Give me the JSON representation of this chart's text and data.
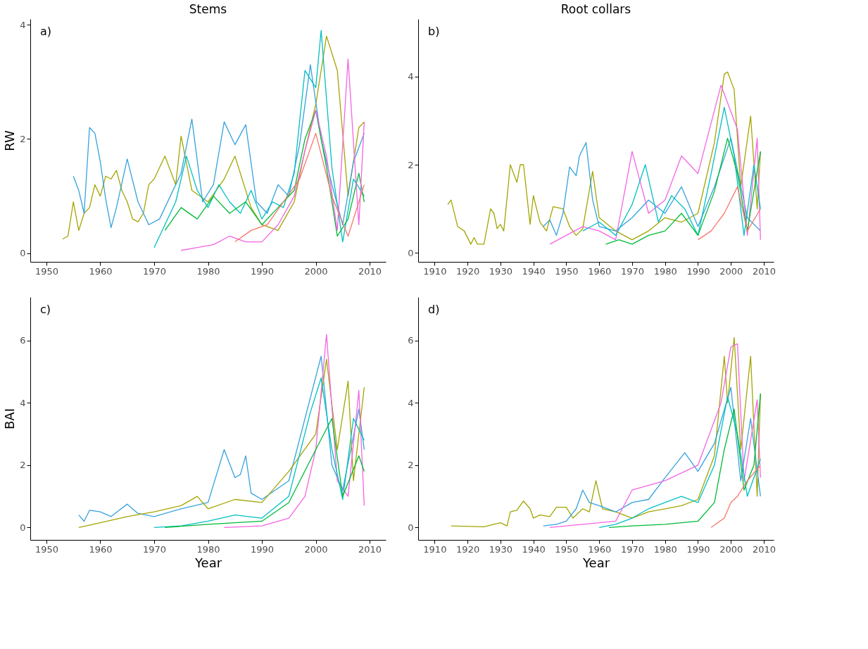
{
  "chart_data": [
    {
      "type": "line",
      "title": "Stems",
      "ylabel": "RW",
      "annotations": [
        "a)"
      ],
      "xlim": [
        1947,
        2013
      ],
      "xticks": [
        1950,
        1960,
        1970,
        1980,
        1990,
        2000,
        2010
      ],
      "ylim": [
        -0.15,
        4.1
      ],
      "yticks": [
        0,
        2,
        4
      ],
      "grid": false,
      "legend": false,
      "series": [
        {
          "color": "#a3a500",
          "x": [
            1953,
            1954,
            1955,
            1956,
            1957,
            1958,
            1959,
            1960,
            1961,
            1962,
            1963,
            1964,
            1965,
            1966,
            1967,
            1968,
            1969,
            1970,
            1972,
            1974,
            1975,
            1977,
            1980,
            1983,
            1985,
            1988,
            1990,
            1993,
            1996,
            1998,
            2000,
            2002,
            2004,
            2006,
            2008,
            2009
          ],
          "values": [
            0.25,
            0.3,
            0.9,
            0.4,
            0.7,
            0.8,
            1.2,
            1.0,
            1.35,
            1.3,
            1.45,
            1.1,
            0.9,
            0.6,
            0.55,
            0.7,
            1.2,
            1.3,
            1.7,
            1.2,
            2.05,
            1.1,
            0.9,
            1.3,
            1.7,
            0.8,
            0.5,
            0.4,
            0.9,
            1.8,
            2.6,
            3.8,
            3.2,
            1.0,
            2.2,
            2.3
          ]
        },
        {
          "color": "#35a2dd",
          "x": [
            1955,
            1956,
            1957,
            1958,
            1959,
            1960,
            1961,
            1962,
            1963,
            1965,
            1967,
            1969,
            1971,
            1973,
            1975,
            1977,
            1979,
            1981,
            1983,
            1985,
            1987,
            1989,
            1991,
            1993,
            1995,
            1997,
            1999,
            2001,
            2003,
            2005,
            2007,
            2009
          ],
          "values": [
            1.35,
            1.1,
            0.7,
            2.2,
            2.1,
            1.6,
            0.95,
            0.45,
            0.8,
            1.65,
            0.9,
            0.5,
            0.6,
            1.0,
            1.4,
            2.35,
            0.9,
            1.2,
            2.3,
            1.9,
            2.25,
            0.9,
            0.7,
            1.2,
            1.0,
            1.9,
            3.3,
            2.0,
            1.2,
            0.5,
            1.6,
            2.1
          ]
        },
        {
          "color": "#00bfc4",
          "x": [
            1970,
            1972,
            1974,
            1976,
            1978,
            1980,
            1982,
            1984,
            1986,
            1988,
            1990,
            1992,
            1994,
            1996,
            1998,
            2000,
            2001,
            2003,
            2005,
            2007,
            2009
          ],
          "values": [
            0.1,
            0.5,
            0.9,
            1.7,
            1.1,
            0.8,
            1.2,
            0.9,
            0.7,
            1.1,
            0.6,
            0.9,
            0.8,
            1.4,
            3.2,
            2.9,
            3.9,
            1.5,
            0.2,
            1.3,
            1.0
          ]
        },
        {
          "color": "#00ba38",
          "x": [
            1972,
            1975,
            1978,
            1981,
            1984,
            1987,
            1990,
            1993,
            1996,
            1998,
            2000,
            2002,
            2004,
            2006,
            2008,
            2009
          ],
          "values": [
            0.4,
            0.8,
            0.6,
            1.0,
            0.7,
            0.9,
            0.5,
            0.8,
            1.1,
            2.0,
            2.5,
            1.5,
            0.3,
            0.6,
            1.4,
            0.9
          ]
        },
        {
          "color": "#f564e3",
          "x": [
            1975,
            1978,
            1981,
            1984,
            1987,
            1990,
            1993,
            1996,
            1998,
            2000,
            2002,
            2004,
            2006,
            2008,
            2009
          ],
          "values": [
            0.05,
            0.1,
            0.15,
            0.3,
            0.2,
            0.2,
            0.5,
            1.0,
            1.8,
            2.5,
            1.7,
            0.4,
            3.4,
            0.5,
            2.3
          ]
        },
        {
          "color": "#f8766d",
          "x": [
            1985,
            1988,
            1991,
            1994,
            1997,
            2000,
            2003,
            2006,
            2009
          ],
          "values": [
            0.2,
            0.4,
            0.5,
            0.9,
            1.3,
            2.1,
            1.0,
            0.3,
            1.2
          ]
        }
      ]
    },
    {
      "type": "line",
      "title": "Root collars",
      "annotations": [
        "b)"
      ],
      "xlim": [
        1905,
        2013
      ],
      "xticks": [
        1910,
        1920,
        1930,
        1940,
        1950,
        1960,
        1970,
        1980,
        1990,
        2000,
        2010
      ],
      "ylim": [
        -0.2,
        5.3
      ],
      "yticks": [
        0,
        2,
        4
      ],
      "grid": false,
      "legend": false,
      "series": [
        {
          "color": "#a3a500",
          "x": [
            1914,
            1915,
            1917,
            1919,
            1921,
            1922,
            1923,
            1925,
            1927,
            1928,
            1929,
            1930,
            1931,
            1933,
            1935,
            1936,
            1937,
            1939,
            1940,
            1942,
            1944,
            1946,
            1949,
            1951,
            1953,
            1955,
            1958,
            1960,
            1965,
            1970,
            1975,
            1980,
            1985,
            1990,
            1995,
            1998,
            1999,
            2001,
            2003,
            2006,
            2008,
            2009
          ],
          "values": [
            1.1,
            1.2,
            0.6,
            0.5,
            0.2,
            0.35,
            0.2,
            0.2,
            1.0,
            0.9,
            0.55,
            0.65,
            0.5,
            2.0,
            1.6,
            2.0,
            2.0,
            0.65,
            1.3,
            0.7,
            0.5,
            1.05,
            1.0,
            0.6,
            0.4,
            0.55,
            1.85,
            0.8,
            0.5,
            0.3,
            0.5,
            0.8,
            0.7,
            0.9,
            2.5,
            4.05,
            4.1,
            3.7,
            1.5,
            3.1,
            1.0,
            2.3
          ]
        },
        {
          "color": "#35a2dd",
          "x": [
            1943,
            1945,
            1947,
            1949,
            1951,
            1953,
            1954,
            1956,
            1958,
            1960,
            1965,
            1970,
            1975,
            1980,
            1985,
            1990,
            1995,
            2000,
            2005,
            2009
          ],
          "values": [
            0.6,
            0.75,
            0.4,
            0.9,
            1.95,
            1.75,
            2.2,
            2.5,
            1.2,
            0.6,
            0.5,
            0.8,
            1.2,
            0.9,
            1.5,
            0.6,
            1.5,
            2.6,
            0.8,
            0.5
          ]
        },
        {
          "color": "#f564e3",
          "x": [
            1945,
            1950,
            1955,
            1960,
            1965,
            1970,
            1975,
            1980,
            1985,
            1990,
            1997,
            2002,
            2005,
            2008,
            2009
          ],
          "values": [
            0.2,
            0.4,
            0.6,
            0.5,
            0.3,
            2.3,
            0.9,
            1.2,
            2.2,
            1.8,
            3.8,
            2.8,
            0.4,
            2.6,
            0.3
          ]
        },
        {
          "color": "#00bfc4",
          "x": [
            1955,
            1960,
            1965,
            1970,
            1974,
            1978,
            1982,
            1986,
            1990,
            1994,
            1998,
            2001,
            2004,
            2007,
            2009
          ],
          "values": [
            0.5,
            0.7,
            0.4,
            1.1,
            2.0,
            0.7,
            1.3,
            1.0,
            0.4,
            1.8,
            3.3,
            2.2,
            0.4,
            2.0,
            1.0
          ]
        },
        {
          "color": "#00ba38",
          "x": [
            1962,
            1966,
            1970,
            1975,
            1980,
            1985,
            1990,
            1995,
            1999,
            2002,
            2005,
            2009
          ],
          "values": [
            0.2,
            0.3,
            0.2,
            0.4,
            0.5,
            0.9,
            0.4,
            1.4,
            2.6,
            1.8,
            0.5,
            2.3
          ]
        },
        {
          "color": "#f8766d",
          "x": [
            1990,
            1994,
            1998,
            2002,
            2005,
            2009
          ],
          "values": [
            0.3,
            0.5,
            0.9,
            1.5,
            0.5,
            1.0
          ]
        }
      ]
    },
    {
      "type": "line",
      "xlabel": "Year",
      "ylabel": "BAI",
      "annotations": [
        "c)"
      ],
      "xlim": [
        1947,
        2013
      ],
      "xticks": [
        1950,
        1960,
        1970,
        1980,
        1990,
        2000,
        2010
      ],
      "ylim": [
        -0.4,
        7.4
      ],
      "yticks": [
        0,
        2,
        4,
        6
      ],
      "grid": false,
      "legend": false,
      "series": [
        {
          "color": "#35a2dd",
          "x": [
            1956,
            1957,
            1958,
            1960,
            1962,
            1965,
            1967,
            1970,
            1975,
            1980,
            1983,
            1985,
            1986,
            1987,
            1988,
            1990,
            1995,
            2001,
            2003,
            2005,
            2008,
            2009
          ],
          "values": [
            0.4,
            0.2,
            0.55,
            0.5,
            0.35,
            0.75,
            0.45,
            0.35,
            0.6,
            0.8,
            2.5,
            1.6,
            1.7,
            2.3,
            1.1,
            0.9,
            1.5,
            5.5,
            2.0,
            1.2,
            3.8,
            2.5
          ]
        },
        {
          "color": "#a3a500",
          "x": [
            1956,
            1960,
            1965,
            1970,
            1975,
            1978,
            1980,
            1985,
            1990,
            1995,
            2000,
            2002,
            2004,
            2006,
            2007,
            2009
          ],
          "values": [
            0.0,
            0.15,
            0.35,
            0.5,
            0.7,
            1.0,
            0.6,
            0.9,
            0.8,
            1.8,
            3.0,
            5.4,
            2.5,
            4.7,
            1.5,
            4.5
          ]
        },
        {
          "color": "#f564e3",
          "x": [
            1983,
            1990,
            1995,
            1998,
            2000,
            2002,
            2004,
            2006,
            2008,
            2009
          ],
          "values": [
            0.0,
            0.05,
            0.3,
            1.0,
            2.5,
            6.2,
            1.5,
            1.0,
            4.4,
            0.7
          ]
        },
        {
          "color": "#00bfc4",
          "x": [
            1970,
            1975,
            1980,
            1985,
            1990,
            1995,
            1999,
            2001,
            2003,
            2005,
            2007,
            2009
          ],
          "values": [
            0.0,
            0.05,
            0.2,
            0.4,
            0.3,
            1.0,
            3.7,
            4.8,
            2.5,
            0.9,
            3.5,
            2.8
          ]
        },
        {
          "color": "#00ba38",
          "x": [
            1972,
            1980,
            1990,
            1995,
            2000,
            2003,
            2005,
            2008,
            2009
          ],
          "values": [
            0.0,
            0.1,
            0.2,
            0.8,
            2.5,
            3.5,
            1.0,
            2.3,
            1.8
          ]
        }
      ]
    },
    {
      "type": "line",
      "xlabel": "Year",
      "annotations": [
        "d)"
      ],
      "xlim": [
        1905,
        2013
      ],
      "xticks": [
        1910,
        1920,
        1930,
        1940,
        1950,
        1960,
        1970,
        1980,
        1990,
        2000,
        2010
      ],
      "ylim": [
        -0.4,
        7.4
      ],
      "yticks": [
        0,
        2,
        4,
        6
      ],
      "grid": false,
      "legend": false,
      "series": [
        {
          "color": "#a3a500",
          "x": [
            1915,
            1925,
            1928,
            1930,
            1932,
            1933,
            1935,
            1937,
            1939,
            1940,
            1942,
            1945,
            1947,
            1950,
            1952,
            1955,
            1957,
            1959,
            1961,
            1965,
            1970,
            1975,
            1980,
            1985,
            1990,
            1995,
            1998,
            1999,
            2001,
            2003,
            2006,
            2008,
            2009
          ],
          "values": [
            0.05,
            0.02,
            0.1,
            0.15,
            0.05,
            0.5,
            0.55,
            0.85,
            0.6,
            0.3,
            0.4,
            0.35,
            0.65,
            0.65,
            0.3,
            0.6,
            0.5,
            1.5,
            0.6,
            0.5,
            0.3,
            0.5,
            0.6,
            0.7,
            0.9,
            2.3,
            5.5,
            4.0,
            6.1,
            2.5,
            5.5,
            1.0,
            4.3
          ]
        },
        {
          "color": "#35a2dd",
          "x": [
            1943,
            1947,
            1950,
            1953,
            1955,
            1957,
            1960,
            1965,
            1970,
            1975,
            1980,
            1986,
            1990,
            1995,
            2000,
            2003,
            2006,
            2009
          ],
          "values": [
            0.05,
            0.1,
            0.2,
            0.6,
            1.2,
            0.8,
            0.7,
            0.5,
            0.8,
            0.9,
            1.6,
            2.4,
            1.8,
            2.7,
            4.5,
            1.5,
            3.5,
            1.0
          ]
        },
        {
          "color": "#f564e3",
          "x": [
            1945,
            1955,
            1965,
            1970,
            1980,
            1990,
            1997,
            2000,
            2002,
            2004,
            2008,
            2009
          ],
          "values": [
            0.0,
            0.1,
            0.2,
            1.2,
            1.5,
            2.0,
            4.0,
            5.8,
            5.9,
            1.5,
            4.1,
            1.6
          ]
        },
        {
          "color": "#00bfc4",
          "x": [
            1960,
            1965,
            1970,
            1975,
            1980,
            1985,
            1990,
            1995,
            1999,
            2002,
            2005,
            2009
          ],
          "values": [
            0.0,
            0.1,
            0.3,
            0.6,
            0.8,
            1.0,
            0.8,
            2.0,
            4.2,
            3.0,
            1.0,
            2.2
          ]
        },
        {
          "color": "#00ba38",
          "x": [
            1963,
            1970,
            1980,
            1990,
            1995,
            1998,
            2001,
            2004,
            2007,
            2009
          ],
          "values": [
            0.0,
            0.05,
            0.1,
            0.2,
            0.8,
            2.5,
            3.8,
            1.2,
            2.0,
            4.3
          ]
        },
        {
          "color": "#f8766d",
          "x": [
            1994,
            1998,
            2000,
            2002,
            2005,
            2009
          ],
          "values": [
            0.0,
            0.3,
            0.8,
            1.0,
            1.5,
            2.0
          ]
        }
      ]
    }
  ]
}
